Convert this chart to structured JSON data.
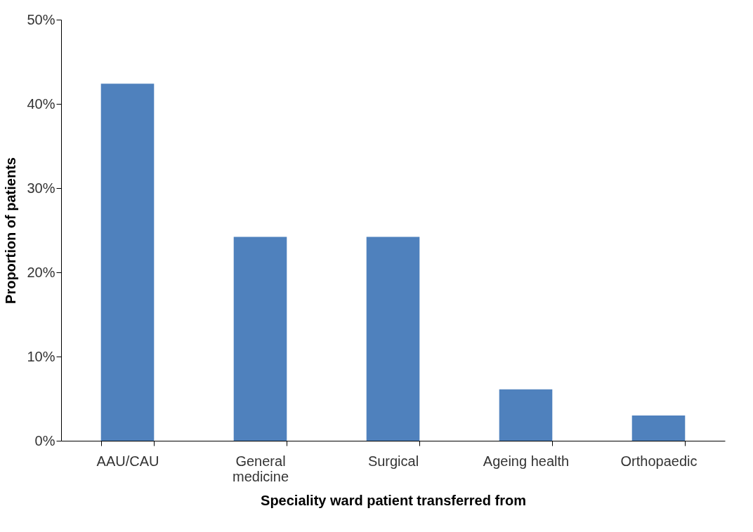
{
  "chart_data": {
    "type": "bar",
    "xlabel": "Speciality ward patient transferred from",
    "ylabel": "Proportion of patients",
    "categories": [
      "AAU/CAU",
      "General medicine",
      "Surgical",
      "Ageing health",
      "Orthopaedic"
    ],
    "values": [
      42.4,
      24.2,
      24.2,
      6.1,
      3.0
    ],
    "color": "#4f81bd",
    "ylim": [
      0,
      50
    ],
    "yticks": [
      {
        "value": 0,
        "label": "0%"
      },
      {
        "value": 10,
        "label": "10%"
      },
      {
        "value": 20,
        "label": "20%"
      },
      {
        "value": 30,
        "label": "30%"
      },
      {
        "value": 40,
        "label": "40%"
      },
      {
        "value": 50,
        "label": "50%"
      }
    ],
    "grid": false
  }
}
